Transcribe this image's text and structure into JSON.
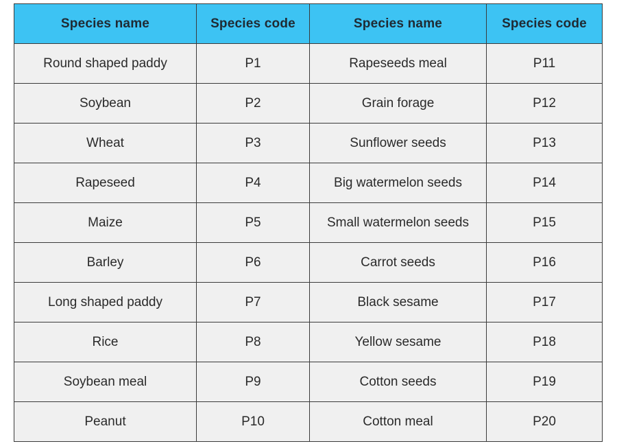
{
  "table": {
    "headers": [
      "Species name",
      "Species code",
      "Species name",
      "Species code"
    ],
    "rows": [
      [
        "Round shaped paddy",
        "P1",
        "Rapeseeds meal",
        "P11"
      ],
      [
        "Soybean",
        "P2",
        "Grain forage",
        "P12"
      ],
      [
        "Wheat",
        "P3",
        "Sunflower seeds",
        "P13"
      ],
      [
        "Rapeseed",
        "P4",
        "Big watermelon seeds",
        "P14"
      ],
      [
        "Maize",
        "P5",
        "Small watermelon seeds",
        "P15"
      ],
      [
        "Barley",
        "P6",
        "Carrot seeds",
        "P16"
      ],
      [
        "Long shaped paddy",
        "P7",
        "Black sesame",
        "P17"
      ],
      [
        "Rice",
        "P8",
        "Yellow sesame",
        "P18"
      ],
      [
        "Soybean meal",
        "P9",
        "Cotton seeds",
        "P19"
      ],
      [
        "Peanut",
        "P10",
        "Cotton meal",
        "P20"
      ]
    ]
  },
  "colors": {
    "header_bg": "#3dc3f3",
    "cell_bg": "#f0f0f0",
    "border": "#3a3a3a"
  }
}
